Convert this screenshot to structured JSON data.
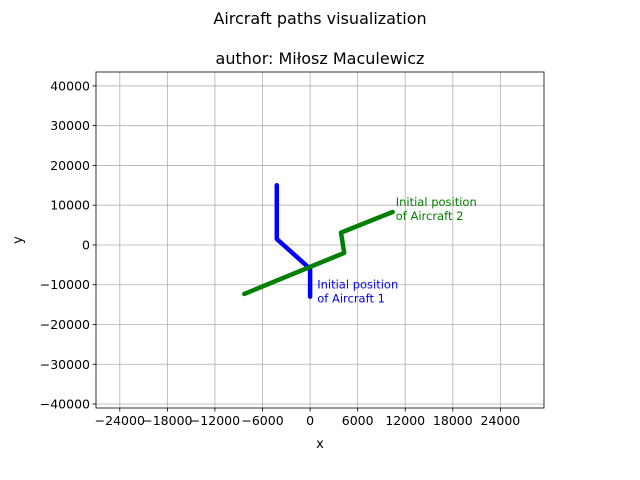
{
  "chart_data": {
    "type": "line",
    "title": "Aircraft paths visualization",
    "subtitle": "author: Miłosz Maculewicz",
    "xlabel": "x",
    "ylabel": "y",
    "xlim": [
      -27000,
      29500
    ],
    "ylim": [
      -41000,
      43500
    ],
    "grid": true,
    "xticks": [
      -24000,
      -18000,
      -12000,
      -6000,
      0,
      6000,
      12000,
      18000,
      24000
    ],
    "xtick_labels": [
      "−24000",
      "−18000",
      "−12000",
      "−6000",
      "0",
      "6000",
      "12000",
      "18000",
      "24000"
    ],
    "yticks": [
      40000,
      30000,
      20000,
      10000,
      0,
      -10000,
      -20000,
      -30000,
      -40000
    ],
    "ytick_labels": [
      "40000",
      "30000",
      "20000",
      "10000",
      "0",
      "−10000",
      "−20000",
      "−30000",
      "−40000"
    ],
    "series": [
      {
        "color": "#0000ff",
        "points": [
          [
            0,
            -13000
          ],
          [
            0,
            -6000
          ],
          [
            -4200,
            1500
          ],
          [
            -4200,
            15000
          ]
        ]
      },
      {
        "color": "#008000",
        "points": [
          [
            10400,
            8300
          ],
          [
            3900,
            3100
          ],
          [
            4300,
            -2000
          ],
          [
            -8300,
            -12300
          ]
        ]
      }
    ],
    "annotations": [
      {
        "id": "aircraft-2",
        "lines": [
          "Initial position",
          "of Aircraft 2"
        ],
        "x": 10800,
        "y": 9800,
        "color": "#008000"
      },
      {
        "id": "aircraft-1",
        "lines": [
          "Initial position",
          "of Aircraft 1"
        ],
        "x": 900,
        "y": -11000,
        "color": "#0000ff"
      }
    ]
  }
}
